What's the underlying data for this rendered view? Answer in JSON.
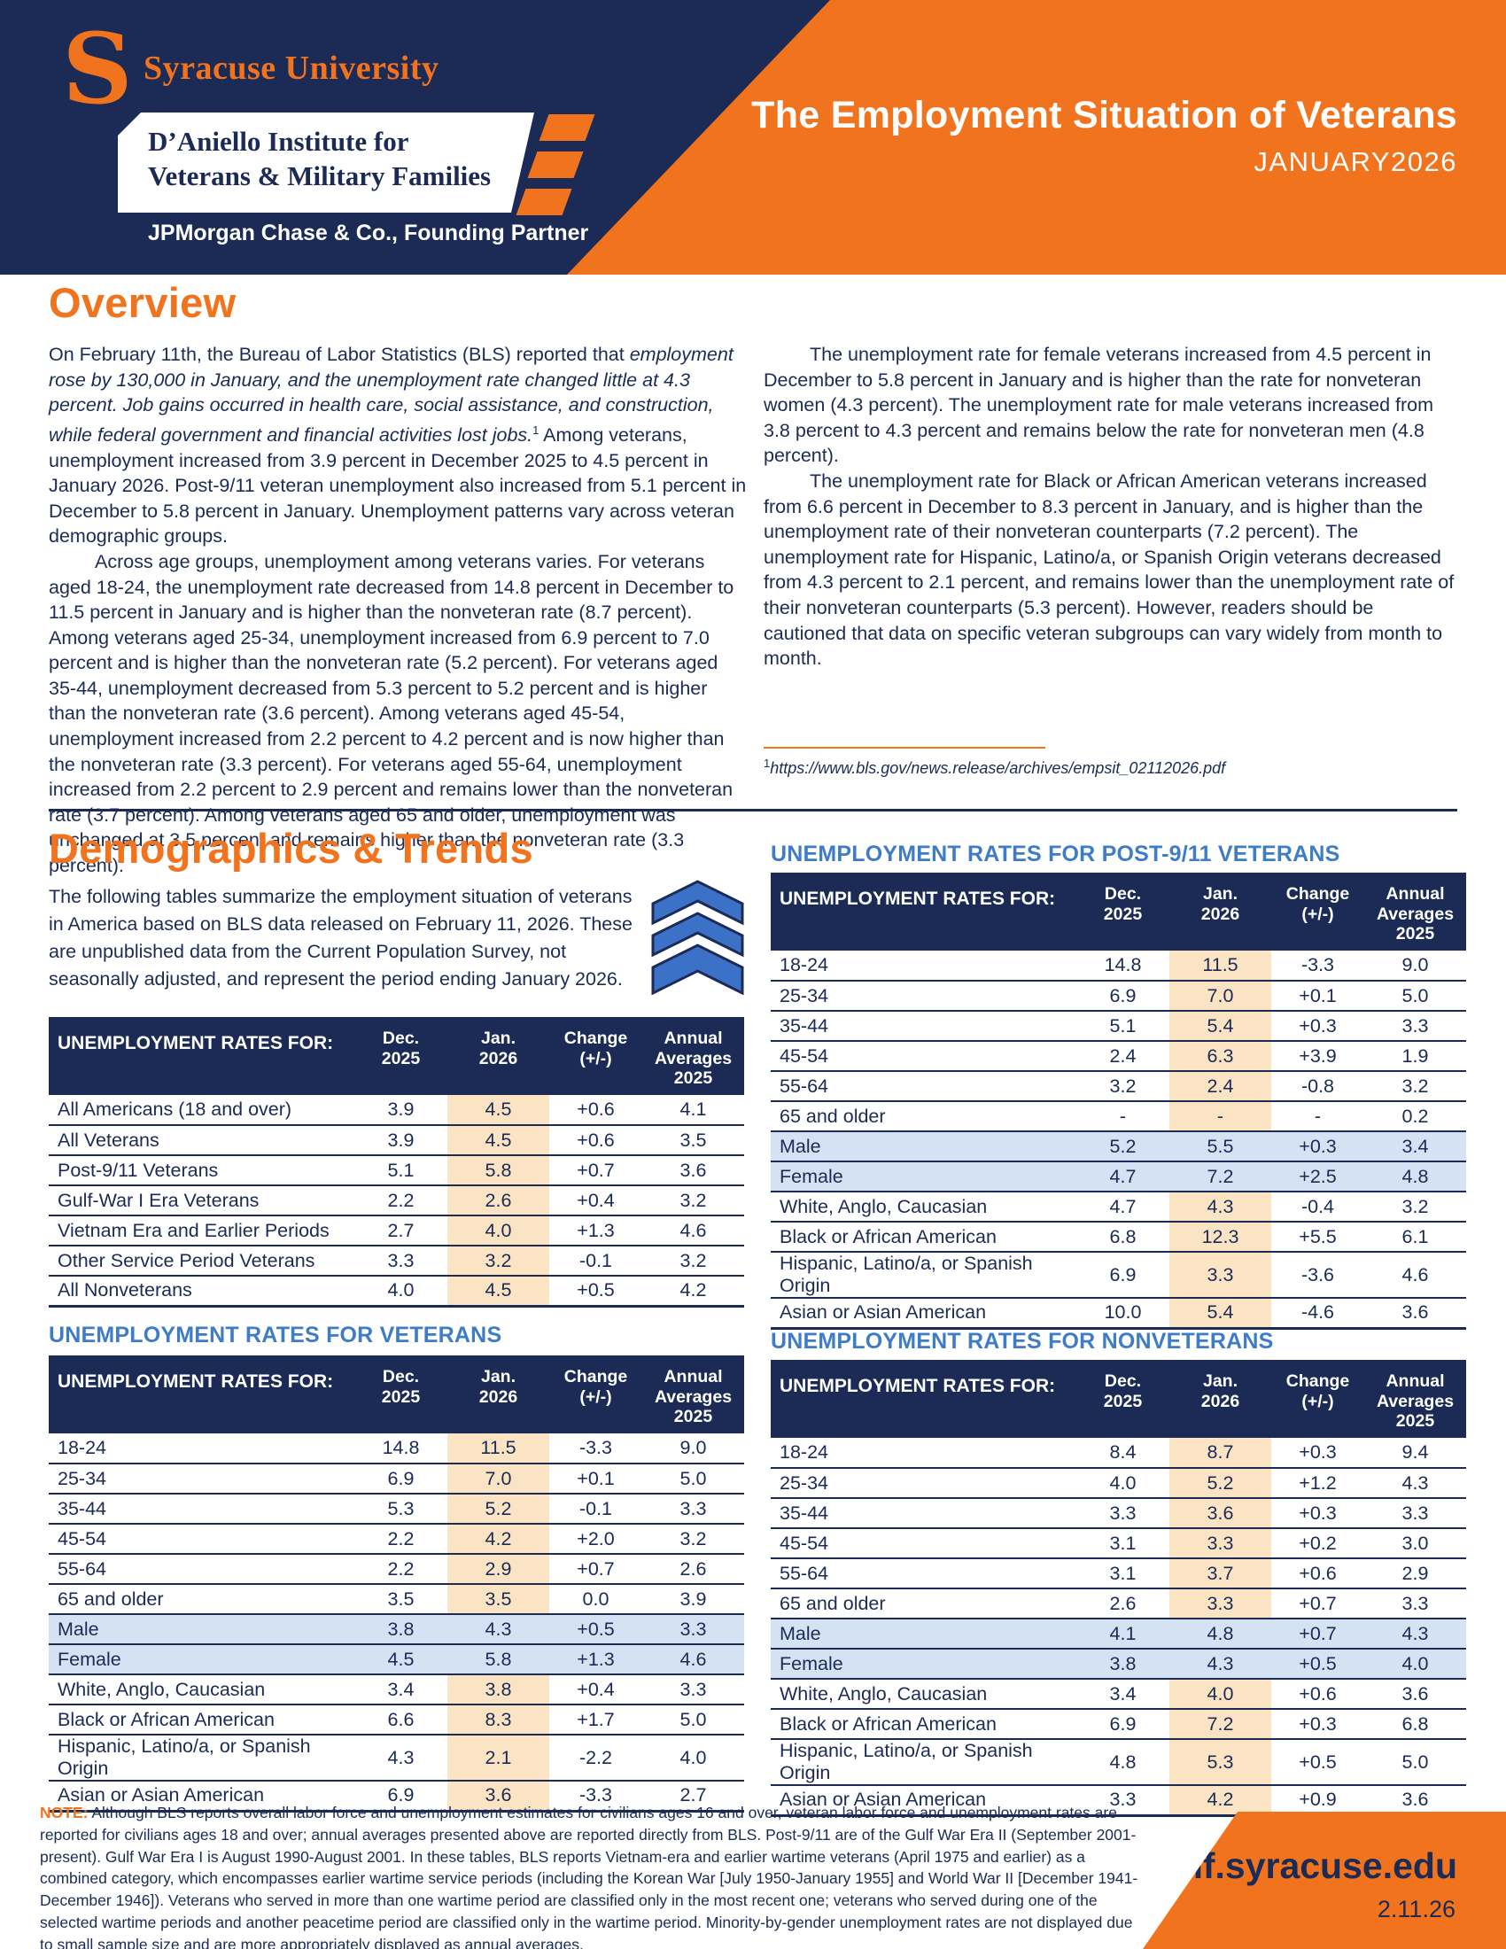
{
  "header": {
    "logo_s": "S",
    "university": "Syracuse University",
    "institute_line1": "D’Aniello Institute for",
    "institute_line2": "Veterans & Military Families",
    "partner": "JPMorgan Chase & Co., Founding Partner",
    "title": "The Employment Situation of Veterans",
    "issue": "JANUARY2026"
  },
  "overview": {
    "heading": "Overview",
    "left": {
      "p1_lead": "On February 11th, the Bureau of Labor Statistics (BLS) reported that ",
      "p1_italic": "employment rose by 130,000 in January, and the unemployment rate changed little at 4.3 percent. Job gains occurred in health care, social assistance, and construction, while federal government and financial activities lost jobs.",
      "footnote_marker": "1",
      "p1_rest": " Among veterans, unemployment increased from 3.9 percent in December 2025 to 4.5 percent in January 2026. Post-9/11 veteran unemployment also increased from 5.1 percent in December to 5.8 percent in January. Unemployment patterns vary across veteran demographic groups.",
      "p2": "Across age groups, unemployment among veterans varies. For veterans aged 18-24, the unemployment rate decreased from 14.8 percent in December to 11.5 percent in January and is higher than the nonveteran rate (8.7 percent). Among veterans aged 25-34, unemployment increased from 6.9 percent to 7.0 percent and is higher than the nonveteran rate (5.2 percent). For veterans aged 35-44, unemployment decreased from 5.3 percent to 5.2 percent and is higher than the nonveteran rate (3.6 percent). Among veterans aged 45-54, unemployment increased from 2.2 percent to 4.2 percent and is now higher than the nonveteran rate (3.3 percent). For veterans aged 55-64, unemployment increased from 2.2 percent to 2.9 percent and remains lower than the nonveteran rate (3.7 percent). Among veterans aged 65 and older, unemployment was unchanged at 3.5 percent and remains higher than the nonveteran rate (3.3 percent)."
    },
    "right": {
      "p1": "The unemployment rate for female veterans increased from 4.5 percent in December to 5.8 percent in January and is higher than the rate for nonveteran women (4.3 percent). The unemployment rate for male veterans increased from 3.8 percent to 4.3 percent and remains below the rate for nonveteran men (4.8 percent).",
      "p2": "The unemployment rate for Black or African American veterans increased from 6.6 percent in December to 8.3 percent in January, and is higher than the unemployment rate of their nonveteran counterparts (7.2 percent). The unemployment rate for Hispanic, Latino/a, or Spanish Origin veterans decreased from 4.3 percent to 2.1 percent, and remains lower than the unemployment rate of their nonveteran counterparts (5.3 percent). However, readers should be cautioned that data on specific veteran subgroups can vary widely from month to month."
    },
    "footnote": {
      "marker": "1",
      "url": "https://www.bls.gov/news.release/archives/empsit_02112026.pdf"
    }
  },
  "demographics": {
    "heading": "Demographics & Trends",
    "intro": "The following tables summarize the employment situation of veterans in America based on BLS data released on February 11, 2026. These are unpublished data from the Current Population Survey, not seasonally adjusted, and represent the period ending January 2026.",
    "chevron_icon": "triple-chevron-up",
    "chevron_color": "#3B72C8"
  },
  "table_shared": {
    "corner_label": "UNEMPLOYMENT RATES FOR:",
    "col_dec": "Dec.\n2025",
    "col_jan": "Jan.\n2026",
    "col_change": "Change\n(+/-)",
    "col_annual": "Annual\nAverages\n2025"
  },
  "tables": [
    {
      "id": "overall",
      "title": "",
      "rows": [
        {
          "label": "All Americans (18 and over)",
          "dec": "3.9",
          "jan": "4.5",
          "change": "+0.6",
          "dir": "up",
          "annual": "4.1",
          "shaded": false
        },
        {
          "label": "All Veterans",
          "dec": "3.9",
          "jan": "4.5",
          "change": "+0.6",
          "dir": "up",
          "annual": "3.5",
          "shaded": false
        },
        {
          "label": "Post-9/11 Veterans",
          "dec": "5.1",
          "jan": "5.8",
          "change": "+0.7",
          "dir": "up",
          "annual": "3.6",
          "shaded": false
        },
        {
          "label": "Gulf-War I Era Veterans",
          "dec": "2.2",
          "jan": "2.6",
          "change": "+0.4",
          "dir": "up",
          "annual": "3.2",
          "shaded": false
        },
        {
          "label": "Vietnam Era and Earlier Periods",
          "dec": "2.7",
          "jan": "4.0",
          "change": "+1.3",
          "dir": "up",
          "annual": "4.6",
          "shaded": false
        },
        {
          "label": "Other Service Period Veterans",
          "dec": "3.3",
          "jan": "3.2",
          "change": "-0.1",
          "dir": "down",
          "annual": "3.2",
          "shaded": false
        },
        {
          "label": "All Nonveterans",
          "dec": "4.0",
          "jan": "4.5",
          "change": "+0.5",
          "dir": "up",
          "annual": "4.2",
          "shaded": false
        }
      ]
    },
    {
      "id": "post911",
      "title": "UNEMPLOYMENT RATES FOR POST-9/11 VETERANS",
      "rows": [
        {
          "label": "18-24",
          "dec": "14.8",
          "jan": "11.5",
          "change": "-3.3",
          "dir": "down",
          "annual": "9.0",
          "shaded": false
        },
        {
          "label": "25-34",
          "dec": "6.9",
          "jan": "7.0",
          "change": "+0.1",
          "dir": "up",
          "annual": "5.0",
          "shaded": false
        },
        {
          "label": "35-44",
          "dec": "5.1",
          "jan": "5.4",
          "change": "+0.3",
          "dir": "up",
          "annual": "3.3",
          "shaded": false
        },
        {
          "label": "45-54",
          "dec": "2.4",
          "jan": "6.3",
          "change": "+3.9",
          "dir": "up",
          "annual": "1.9",
          "shaded": false
        },
        {
          "label": "55-64",
          "dec": "3.2",
          "jan": "2.4",
          "change": "-0.8",
          "dir": "down",
          "annual": "3.2",
          "shaded": false
        },
        {
          "label": "65 and older",
          "dec": "-",
          "jan": "-",
          "change": "-",
          "dir": "zero",
          "annual": "0.2",
          "shaded": false
        },
        {
          "label": "Male",
          "dec": "5.2",
          "jan": "5.5",
          "change": "+0.3",
          "dir": "up",
          "annual": "3.4",
          "shaded": true
        },
        {
          "label": "Female",
          "dec": "4.7",
          "jan": "7.2",
          "change": "+2.5",
          "dir": "up",
          "annual": "4.8",
          "shaded": true
        },
        {
          "label": "White, Anglo, Caucasian",
          "dec": "4.7",
          "jan": "4.3",
          "change": "-0.4",
          "dir": "down",
          "annual": "3.2",
          "shaded": false
        },
        {
          "label": "Black or African American",
          "dec": "6.8",
          "jan": "12.3",
          "change": "+5.5",
          "dir": "up",
          "annual": "6.1",
          "shaded": false
        },
        {
          "label": "Hispanic, Latino/a, or Spanish Origin",
          "dec": "6.9",
          "jan": "3.3",
          "change": "-3.6",
          "dir": "down",
          "annual": "4.6",
          "shaded": false
        },
        {
          "label": "Asian or Asian American",
          "dec": "10.0",
          "jan": "5.4",
          "change": "-4.6",
          "dir": "down",
          "annual": "3.6",
          "shaded": false
        }
      ]
    },
    {
      "id": "veterans",
      "title": "UNEMPLOYMENT RATES FOR VETERANS",
      "rows": [
        {
          "label": "18-24",
          "dec": "14.8",
          "jan": "11.5",
          "change": "-3.3",
          "dir": "down",
          "annual": "9.0",
          "shaded": false
        },
        {
          "label": "25-34",
          "dec": "6.9",
          "jan": "7.0",
          "change": "+0.1",
          "dir": "up",
          "annual": "5.0",
          "shaded": false
        },
        {
          "label": "35-44",
          "dec": "5.3",
          "jan": "5.2",
          "change": "-0.1",
          "dir": "down",
          "annual": "3.3",
          "shaded": false
        },
        {
          "label": "45-54",
          "dec": "2.2",
          "jan": "4.2",
          "change": "+2.0",
          "dir": "up",
          "annual": "3.2",
          "shaded": false
        },
        {
          "label": "55-64",
          "dec": "2.2",
          "jan": "2.9",
          "change": "+0.7",
          "dir": "up",
          "annual": "2.6",
          "shaded": false
        },
        {
          "label": "65 and older",
          "dec": "3.5",
          "jan": "3.5",
          "change": "0.0",
          "dir": "zero",
          "annual": "3.9",
          "shaded": false
        },
        {
          "label": "Male",
          "dec": "3.8",
          "jan": "4.3",
          "change": "+0.5",
          "dir": "up",
          "annual": "3.3",
          "shaded": true
        },
        {
          "label": "Female",
          "dec": "4.5",
          "jan": "5.8",
          "change": "+1.3",
          "dir": "up",
          "annual": "4.6",
          "shaded": true
        },
        {
          "label": "White, Anglo, Caucasian",
          "dec": "3.4",
          "jan": "3.8",
          "change": "+0.4",
          "dir": "up",
          "annual": "3.3",
          "shaded": false
        },
        {
          "label": "Black or African American",
          "dec": "6.6",
          "jan": "8.3",
          "change": "+1.7",
          "dir": "up",
          "annual": "5.0",
          "shaded": false
        },
        {
          "label": "Hispanic, Latino/a, or Spanish Origin",
          "dec": "4.3",
          "jan": "2.1",
          "change": "-2.2",
          "dir": "down",
          "annual": "4.0",
          "shaded": false
        },
        {
          "label": "Asian or Asian American",
          "dec": "6.9",
          "jan": "3.6",
          "change": "-3.3",
          "dir": "down",
          "annual": "2.7",
          "shaded": false
        }
      ]
    },
    {
      "id": "nonveterans",
      "title": "UNEMPLOYMENT RATES FOR NONVETERANS",
      "rows": [
        {
          "label": "18-24",
          "dec": "8.4",
          "jan": "8.7",
          "change": "+0.3",
          "dir": "up",
          "annual": "9.4",
          "shaded": false
        },
        {
          "label": "25-34",
          "dec": "4.0",
          "jan": "5.2",
          "change": "+1.2",
          "dir": "up",
          "annual": "4.3",
          "shaded": false
        },
        {
          "label": "35-44",
          "dec": "3.3",
          "jan": "3.6",
          "change": "+0.3",
          "dir": "up",
          "annual": "3.3",
          "shaded": false
        },
        {
          "label": "45-54",
          "dec": "3.1",
          "jan": "3.3",
          "change": "+0.2",
          "dir": "up",
          "annual": "3.0",
          "shaded": false
        },
        {
          "label": "55-64",
          "dec": "3.1",
          "jan": "3.7",
          "change": "+0.6",
          "dir": "up",
          "annual": "2.9",
          "shaded": false
        },
        {
          "label": "65 and older",
          "dec": "2.6",
          "jan": "3.3",
          "change": "+0.7",
          "dir": "up",
          "annual": "3.3",
          "shaded": false
        },
        {
          "label": "Male",
          "dec": "4.1",
          "jan": "4.8",
          "change": "+0.7",
          "dir": "up",
          "annual": "4.3",
          "shaded": true
        },
        {
          "label": "Female",
          "dec": "3.8",
          "jan": "4.3",
          "change": "+0.5",
          "dir": "up",
          "annual": "4.0",
          "shaded": true
        },
        {
          "label": "White, Anglo, Caucasian",
          "dec": "3.4",
          "jan": "4.0",
          "change": "+0.6",
          "dir": "up",
          "annual": "3.6",
          "shaded": false
        },
        {
          "label": "Black or African American",
          "dec": "6.9",
          "jan": "7.2",
          "change": "+0.3",
          "dir": "up",
          "annual": "6.8",
          "shaded": false
        },
        {
          "label": "Hispanic, Latino/a, or Spanish Origin",
          "dec": "4.8",
          "jan": "5.3",
          "change": "+0.5",
          "dir": "up",
          "annual": "5.0",
          "shaded": false
        },
        {
          "label": "Asian or Asian American",
          "dec": "3.3",
          "jan": "4.2",
          "change": "+0.9",
          "dir": "up",
          "annual": "3.6",
          "shaded": false
        }
      ]
    }
  ],
  "note": {
    "label": "NOTE:",
    "text": " Although BLS reports overall labor force and unemployment estimates for civilians ages 16 and over, veteran labor force and unemployment rates are reported for civilians ages 18 and over; annual averages presented above are reported directly from BLS. Post-9/11 are of the Gulf War Era II (September 2001-present). Gulf War Era I is August 1990-August 2001. In these tables, BLS reports Vietnam-era and earlier wartime veterans (April 1975 and earlier) as a combined category, which encompasses earlier wartime service periods (including the Korean War [July 1950-January 1955] and World War II [December 1941-December 1946]). Veterans who served in more than one wartime period are classified only in the most recent one; veterans who served during one of the selected wartime periods and another peacetime period are classified only in the wartime period. Minority-by-gender unemployment rates are not displayed due to small sample size and are more appropriately displayed as annual averages."
  },
  "footer": {
    "url": "ivmf.syracuse.edu",
    "date": "2.11.26"
  },
  "colors": {
    "navy": "#1B2B55",
    "orange": "#F1731E",
    "table_title_blue": "#3E7CC7",
    "change_positive": "#E34D2C",
    "change_negative": "#5083C4",
    "jan_highlight": "#FBE4C4",
    "gender_row": "#D4E2F4"
  }
}
